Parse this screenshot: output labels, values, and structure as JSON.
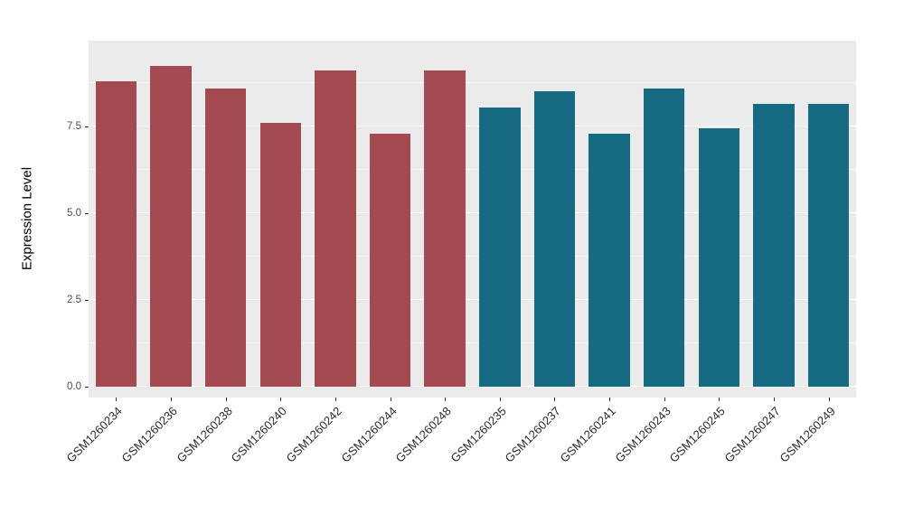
{
  "chart_data": {
    "type": "bar",
    "title": "",
    "xlabel": "",
    "ylabel": "Expression Level",
    "ylim": [
      0,
      9.97
    ],
    "yticks": [
      0,
      2.5,
      5,
      7.5
    ],
    "ytick_labels": [
      "0.0",
      "2.5",
      "5.0",
      "7.5"
    ],
    "minor_yticks": [
      1.25,
      3.75,
      6.25,
      8.75
    ],
    "grid": "on",
    "legend_position": "none",
    "categories": [
      "GSM1260234",
      "GSM1260236",
      "GSM1260238",
      "GSM1260240",
      "GSM1260242",
      "GSM1260244",
      "GSM1260248",
      "GSM1260235",
      "GSM1260237",
      "GSM1260241",
      "GSM1260243",
      "GSM1260245",
      "GSM1260247",
      "GSM1260249"
    ],
    "values": [
      8.8,
      9.25,
      8.6,
      7.6,
      9.1,
      7.3,
      9.1,
      8.05,
      8.5,
      7.3,
      8.6,
      7.45,
      8.15,
      8.15
    ],
    "groups": [
      "g1",
      "g1",
      "g1",
      "g1",
      "g1",
      "g1",
      "g1",
      "g2",
      "g2",
      "g2",
      "g2",
      "g2",
      "g2",
      "g2"
    ],
    "group_colors": {
      "g1": "#A34A52",
      "g2": "#166B83"
    }
  },
  "style": {
    "panel_bg": "#EBEBEB",
    "grid_major": "#FFFFFF",
    "outer_bg": "#FFFFFF"
  }
}
